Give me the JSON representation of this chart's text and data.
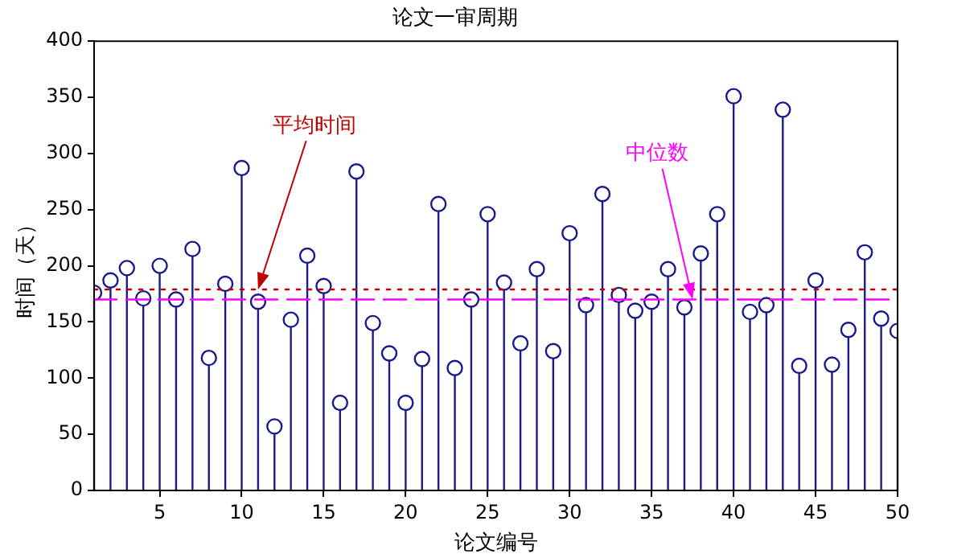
{
  "chart_data": {
    "type": "lollipop",
    "title": "论文一审周期",
    "xlabel": "论文编号",
    "ylabel": "时间（天）",
    "x": [
      1,
      2,
      3,
      4,
      5,
      6,
      7,
      8,
      9,
      10,
      11,
      12,
      13,
      14,
      15,
      16,
      17,
      18,
      19,
      20,
      21,
      22,
      23,
      24,
      25,
      26,
      27,
      28,
      29,
      30,
      31,
      32,
      33,
      34,
      35,
      36,
      37,
      38,
      39,
      40,
      41,
      42,
      43,
      44,
      45,
      46,
      47,
      48,
      49,
      50
    ],
    "values": [
      176,
      187,
      198,
      171,
      200,
      170,
      215,
      118,
      184,
      287,
      168,
      57,
      152,
      209,
      182,
      78,
      284,
      149,
      122,
      78,
      117,
      255,
      109,
      170,
      246,
      185,
      131,
      197,
      124,
      229,
      165,
      264,
      174,
      160,
      168,
      197,
      163,
      211,
      246,
      351,
      159,
      165,
      339,
      111,
      187,
      112,
      143,
      212,
      153,
      142
    ],
    "color": "#1a1a8c",
    "marker": "circle",
    "legend": false,
    "xlim": [
      1,
      50
    ],
    "xticks": [
      5,
      10,
      15,
      20,
      25,
      30,
      35,
      40,
      45,
      50
    ],
    "ylim": [
      0,
      400
    ],
    "yticks": [
      0,
      50,
      100,
      150,
      200,
      250,
      300,
      350,
      400
    ],
    "ref_lines": [
      {
        "axis": "y",
        "value": 179,
        "color": "#c00000",
        "line_style": "dotted"
      },
      {
        "axis": "y",
        "value": 170,
        "color": "#ff00ff",
        "line_style": "dashed"
      }
    ],
    "annotations": [
      {
        "text": "平均时间",
        "x": 11,
        "y": 179
      },
      {
        "text": "中位数",
        "x": 37.5,
        "y": 170
      }
    ]
  }
}
